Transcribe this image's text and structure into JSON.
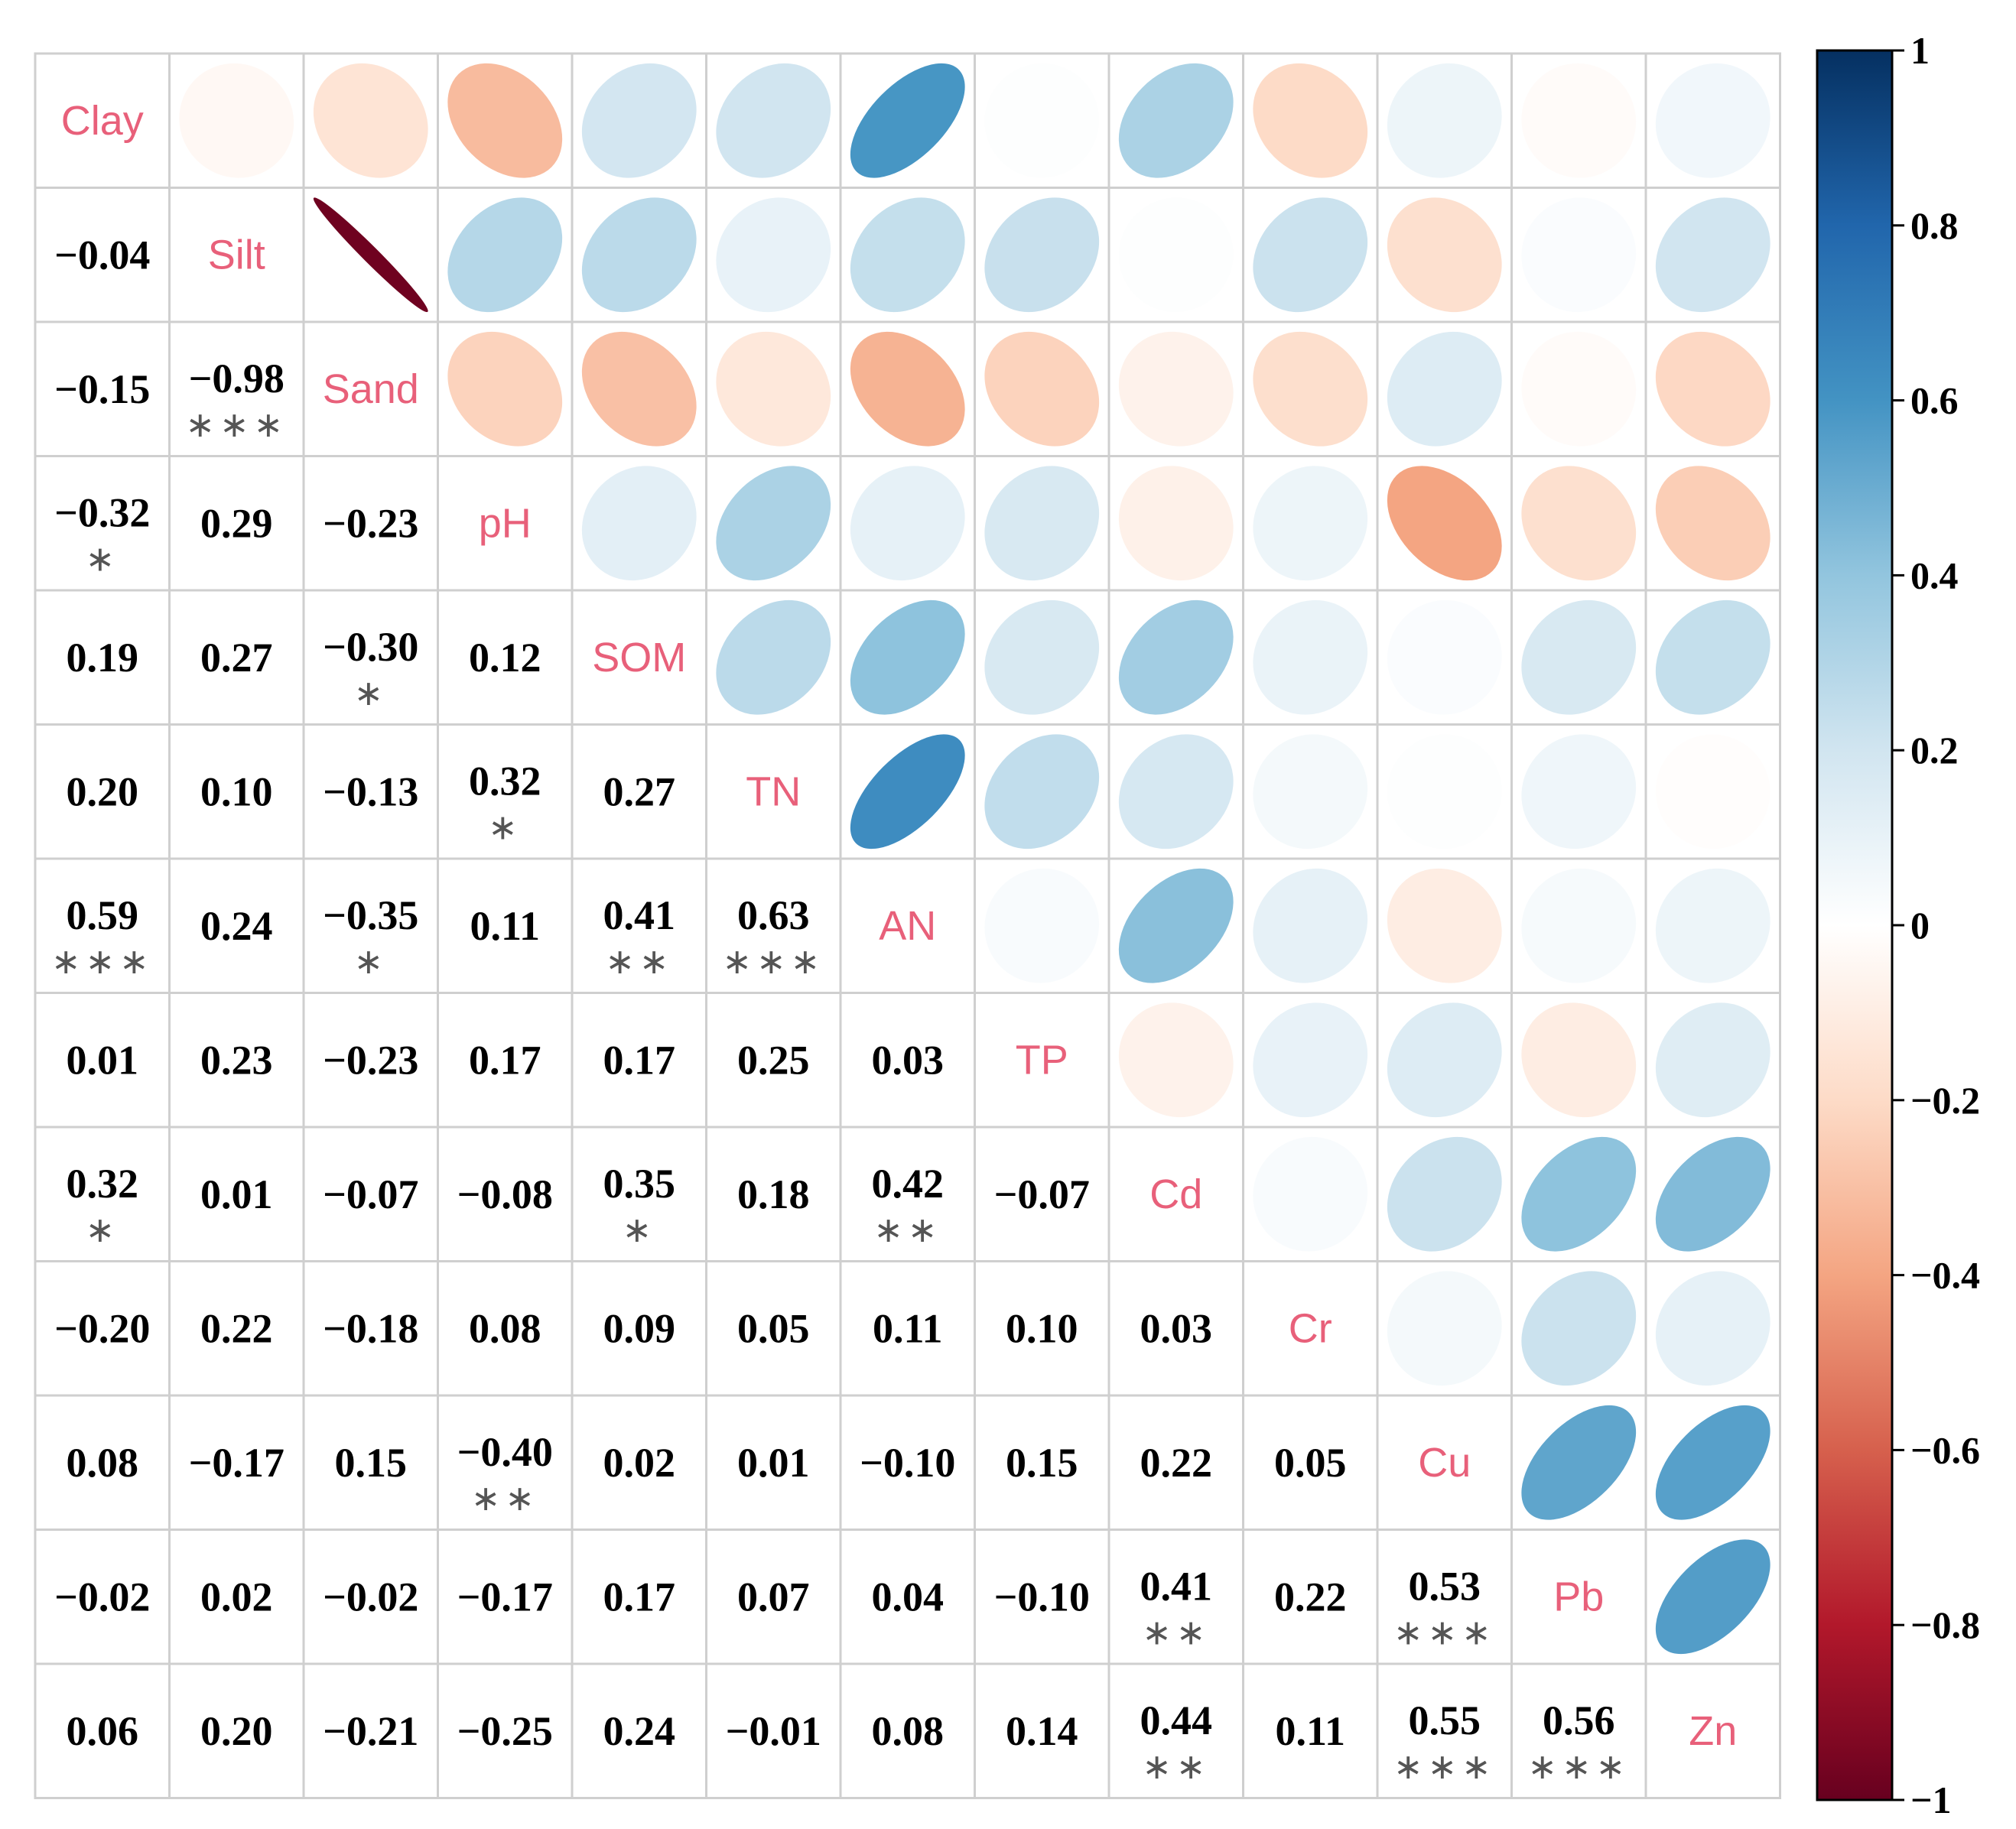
{
  "chart_data": {
    "type": "heatmap",
    "subtype": "correlation-matrix",
    "upper_glyph": "ellipse",
    "lower_glyph": "number",
    "variables": [
      "Clay",
      "Silt",
      "Sand",
      "pH",
      "SOM",
      "TN",
      "AN",
      "TP",
      "Cd",
      "Cr",
      "Cu",
      "Pb",
      "Zn"
    ],
    "lower_labels": [
      [],
      [
        "−0.04"
      ],
      [
        "−0.15",
        "−0.98"
      ],
      [
        "−0.32",
        "0.29",
        "−0.23"
      ],
      [
        "0.19",
        "0.27",
        "−0.30",
        "0.12"
      ],
      [
        "0.20",
        "0.10",
        "−0.13",
        "0.32",
        "0.27"
      ],
      [
        "0.59",
        "0.24",
        "−0.35",
        "0.11",
        "0.41",
        "0.63"
      ],
      [
        "0.01",
        "0.23",
        "−0.23",
        "0.17",
        "0.17",
        "0.25",
        "0.03"
      ],
      [
        "0.32",
        "0.01",
        "−0.07",
        "−0.08",
        "0.35",
        "0.18",
        "0.42",
        "−0.07"
      ],
      [
        "−0.20",
        "0.22",
        "−0.18",
        "0.08",
        "0.09",
        "0.05",
        "0.11",
        "0.10",
        "0.03"
      ],
      [
        "0.08",
        "−0.17",
        "0.15",
        "−0.40",
        "0.02",
        "0.01",
        "−0.10",
        "0.15",
        "0.22",
        "0.05"
      ],
      [
        "−0.02",
        "0.02",
        "−0.02",
        "−0.17",
        "0.17",
        "0.07",
        "0.04",
        "−0.10",
        "0.41",
        "0.22",
        "0.53"
      ],
      [
        "0.06",
        "0.20",
        "−0.21",
        "−0.25",
        "0.24",
        "−0.01",
        "0.08",
        "0.14",
        "0.44",
        "0.11",
        "0.55",
        "0.56"
      ]
    ],
    "values": [
      [
        1,
        -0.04,
        -0.15,
        -0.32,
        0.19,
        0.2,
        0.59,
        0.01,
        0.32,
        -0.2,
        0.08,
        -0.02,
        0.06
      ],
      [
        -0.04,
        1,
        -0.98,
        0.29,
        0.27,
        0.1,
        0.24,
        0.23,
        0.01,
        0.22,
        -0.17,
        0.02,
        0.2
      ],
      [
        -0.15,
        -0.98,
        1,
        -0.23,
        -0.3,
        -0.13,
        -0.35,
        -0.23,
        -0.07,
        -0.18,
        0.15,
        -0.02,
        -0.21
      ],
      [
        -0.32,
        0.29,
        -0.23,
        1,
        0.12,
        0.32,
        0.11,
        0.17,
        -0.08,
        0.08,
        -0.4,
        -0.17,
        -0.25
      ],
      [
        0.19,
        0.27,
        -0.3,
        0.12,
        1,
        0.27,
        0.41,
        0.17,
        0.35,
        0.09,
        0.02,
        0.17,
        0.24
      ],
      [
        0.2,
        0.1,
        -0.13,
        0.32,
        0.27,
        1,
        0.63,
        0.25,
        0.18,
        0.05,
        0.01,
        0.07,
        -0.01
      ],
      [
        0.59,
        0.24,
        -0.35,
        0.11,
        0.41,
        0.63,
        1,
        0.03,
        0.42,
        0.11,
        -0.1,
        0.04,
        0.08
      ],
      [
        0.01,
        0.23,
        -0.23,
        0.17,
        0.17,
        0.25,
        0.03,
        1,
        -0.07,
        0.1,
        0.15,
        -0.1,
        0.14
      ],
      [
        0.32,
        0.01,
        -0.07,
        -0.08,
        0.35,
        0.18,
        0.42,
        -0.07,
        1,
        0.03,
        0.22,
        0.41,
        0.44
      ],
      [
        -0.2,
        0.22,
        -0.18,
        0.08,
        0.09,
        0.05,
        0.11,
        0.1,
        0.03,
        1,
        0.05,
        0.22,
        0.11
      ],
      [
        0.08,
        -0.17,
        0.15,
        -0.4,
        0.02,
        0.01,
        -0.1,
        0.15,
        0.22,
        0.05,
        1,
        0.53,
        0.55
      ],
      [
        -0.02,
        0.02,
        -0.02,
        -0.17,
        0.17,
        0.07,
        0.04,
        -0.1,
        0.41,
        0.22,
        0.53,
        1,
        0.56
      ],
      [
        0.06,
        0.2,
        -0.21,
        -0.25,
        0.24,
        -0.01,
        0.08,
        0.14,
        0.44,
        0.11,
        0.55,
        0.56,
        1
      ]
    ],
    "significance": [
      {
        "row": "Sand",
        "col": "Silt",
        "stars": "***"
      },
      {
        "row": "pH",
        "col": "Clay",
        "stars": "*"
      },
      {
        "row": "SOM",
        "col": "Sand",
        "stars": "*"
      },
      {
        "row": "TN",
        "col": "pH",
        "stars": "*"
      },
      {
        "row": "AN",
        "col": "Clay",
        "stars": "***"
      },
      {
        "row": "AN",
        "col": "Sand",
        "stars": "*"
      },
      {
        "row": "AN",
        "col": "SOM",
        "stars": "**"
      },
      {
        "row": "AN",
        "col": "TN",
        "stars": "***"
      },
      {
        "row": "Cd",
        "col": "Clay",
        "stars": "*"
      },
      {
        "row": "Cd",
        "col": "SOM",
        "stars": "*"
      },
      {
        "row": "Cd",
        "col": "AN",
        "stars": "**"
      },
      {
        "row": "Cu",
        "col": "pH",
        "stars": "**"
      },
      {
        "row": "Pb",
        "col": "Cd",
        "stars": "**"
      },
      {
        "row": "Pb",
        "col": "Cu",
        "stars": "***"
      },
      {
        "row": "Zn",
        "col": "Cd",
        "stars": "**"
      },
      {
        "row": "Zn",
        "col": "Cu",
        "stars": "***"
      },
      {
        "row": "Zn",
        "col": "Pb",
        "stars": "***"
      }
    ],
    "colorbar": {
      "range": [
        -1,
        1
      ],
      "ticks": [
        1,
        0.8,
        0.6,
        0.4,
        0.2,
        0,
        -0.2,
        -0.4,
        -0.6,
        -0.8,
        -1
      ],
      "tick_labels": [
        "1",
        "0.8",
        "0.6",
        "0.4",
        "0.2",
        "0",
        "−0.2",
        "−0.4",
        "−0.6",
        "−0.8",
        "−1"
      ],
      "colors_negative_to_positive": [
        "#67001f",
        "#b2182b",
        "#d6604d",
        "#f4a582",
        "#fddbc7",
        "#ffffff",
        "#d1e5f0",
        "#92c5de",
        "#4393c3",
        "#2166ac",
        "#053061"
      ]
    }
  }
}
